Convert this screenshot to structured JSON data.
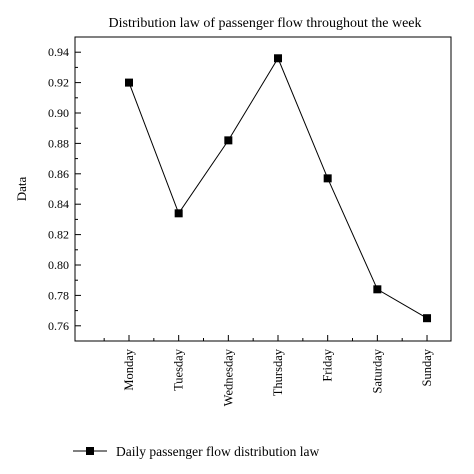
{
  "chart_data": {
    "type": "line",
    "title": "Distribution law of passenger flow throughout the week",
    "xlabel": "",
    "ylabel": "Data",
    "categories": [
      "Monday",
      "Tuesday",
      "Wednesday",
      "Thursday",
      "Friday",
      "Saturday",
      "Sunday"
    ],
    "series": [
      {
        "name": "Daily passenger flow distribution law",
        "values": [
          0.92,
          0.834,
          0.882,
          0.936,
          0.857,
          0.784,
          0.765
        ]
      }
    ],
    "ylim": [
      0.75,
      0.95
    ],
    "yticks": [
      "0.76",
      "0.78",
      "0.80",
      "0.82",
      "0.84",
      "0.86",
      "0.88",
      "0.90",
      "0.92",
      "0.94"
    ],
    "grid": false,
    "legend_position": "bottom",
    "colors": {
      "line": "#000000",
      "marker": "#000000",
      "axes": "#000000"
    }
  }
}
